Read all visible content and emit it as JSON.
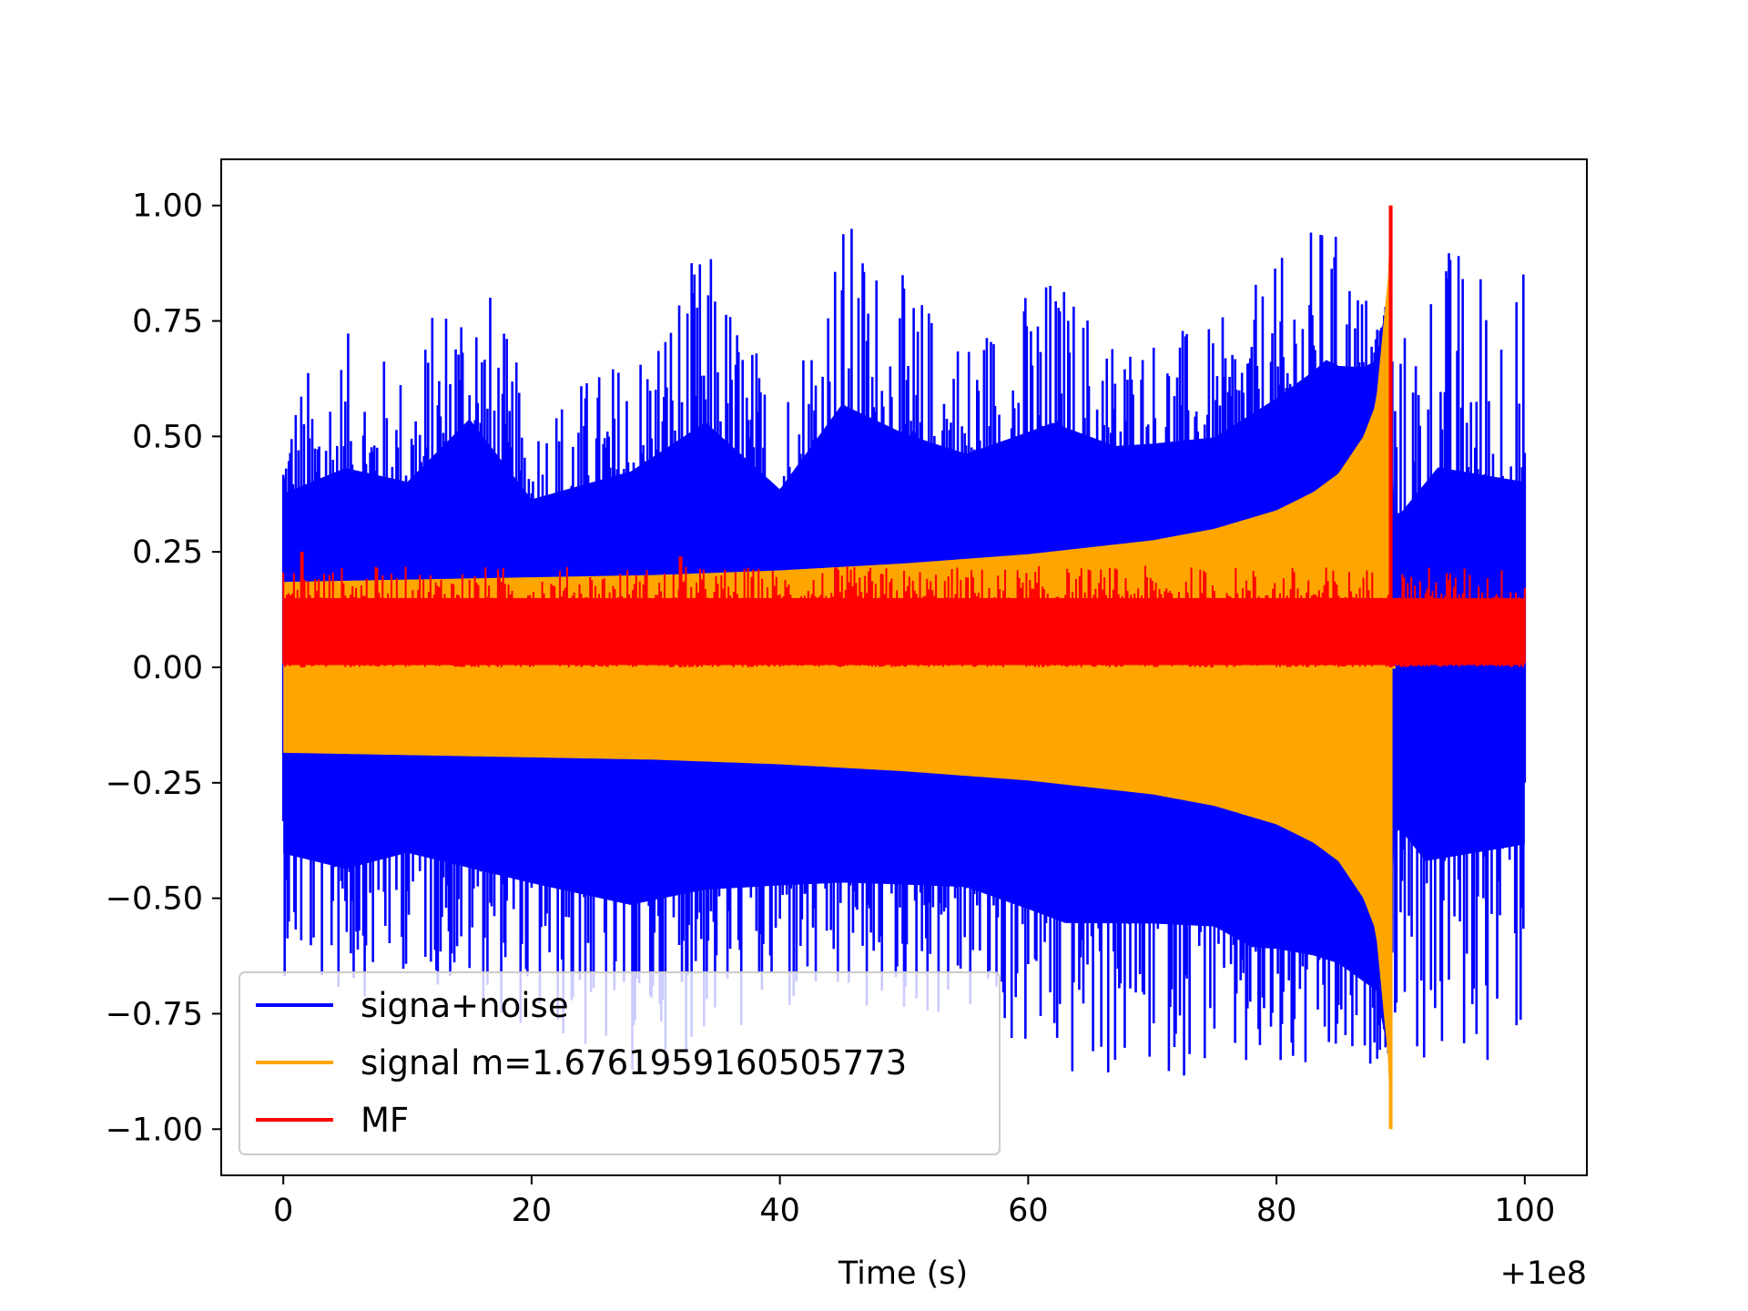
{
  "chart_data": {
    "type": "line",
    "title": "",
    "xlabel": "Time (s)",
    "ylabel": "",
    "x_offset_label": "+1e8",
    "xlim": [
      -5,
      105
    ],
    "ylim": [
      -1.1,
      1.1
    ],
    "xticks": [
      0,
      20,
      40,
      60,
      80,
      100
    ],
    "xtick_labels": [
      "0",
      "20",
      "40",
      "60",
      "80",
      "100"
    ],
    "yticks": [
      1.0,
      0.75,
      0.5,
      0.25,
      0.0,
      -0.25,
      -0.5,
      -0.75,
      -1.0
    ],
    "ytick_labels": [
      "1.00",
      "0.75",
      "0.50",
      "0.25",
      "0.00",
      "−0.25",
      "−0.50",
      "−0.75",
      "−1.00"
    ],
    "grid": false,
    "legend_position": "lower-left",
    "series": [
      {
        "name": "signa+noise",
        "color": "#0000ff",
        "x_range": [
          0,
          100
        ],
        "envelope_upper": [
          [
            0,
            0.61
          ],
          [
            5,
            0.73
          ],
          [
            10,
            0.66
          ],
          [
            15,
            0.96
          ],
          [
            20,
            0.57
          ],
          [
            28,
            0.7
          ],
          [
            34,
            0.93
          ],
          [
            40,
            0.6
          ],
          [
            45,
            1.0
          ],
          [
            50,
            0.85
          ],
          [
            55,
            0.74
          ],
          [
            62,
            0.87
          ],
          [
            67,
            0.74
          ],
          [
            75,
            0.74
          ],
          [
            84,
            0.99
          ],
          [
            88,
            0.78
          ],
          [
            90,
            0.73
          ],
          [
            93,
            0.95
          ],
          [
            100,
            0.88
          ]
        ],
        "envelope_lower": [
          [
            0,
            -0.67
          ],
          [
            5,
            -0.74
          ],
          [
            10,
            -0.66
          ],
          [
            15,
            -0.73
          ],
          [
            20,
            -0.8
          ],
          [
            28,
            -0.9
          ],
          [
            34,
            -0.82
          ],
          [
            45,
            -0.77
          ],
          [
            55,
            -0.77
          ],
          [
            63,
            -0.92
          ],
          [
            75,
            -0.88
          ],
          [
            78,
            -0.95
          ],
          [
            87,
            -0.9
          ],
          [
            90,
            -0.77
          ],
          [
            92,
            -0.92
          ],
          [
            100,
            -0.84
          ]
        ]
      },
      {
        "name": "signal m=1.6761959160505773",
        "color": "#ffa500",
        "x_range": [
          0,
          89.5
        ],
        "amplitude": [
          [
            0,
            0.185
          ],
          [
            10,
            0.19
          ],
          [
            20,
            0.195
          ],
          [
            30,
            0.2
          ],
          [
            40,
            0.21
          ],
          [
            50,
            0.225
          ],
          [
            60,
            0.245
          ],
          [
            70,
            0.275
          ],
          [
            75,
            0.3
          ],
          [
            80,
            0.34
          ],
          [
            83,
            0.38
          ],
          [
            85,
            0.42
          ],
          [
            87,
            0.5
          ],
          [
            88,
            0.57
          ],
          [
            89,
            0.85
          ],
          [
            89.2,
            1.0
          ],
          [
            89.5,
            0.0
          ]
        ]
      },
      {
        "name": "MF",
        "color": "#ff0000",
        "x_range": [
          0,
          100
        ],
        "baseline": 0.05,
        "band": [
          0.0,
          0.2
        ],
        "spikes": [
          [
            1.5,
            0.25
          ],
          [
            32,
            0.24
          ],
          [
            89.2,
            1.0
          ]
        ]
      }
    ]
  }
}
